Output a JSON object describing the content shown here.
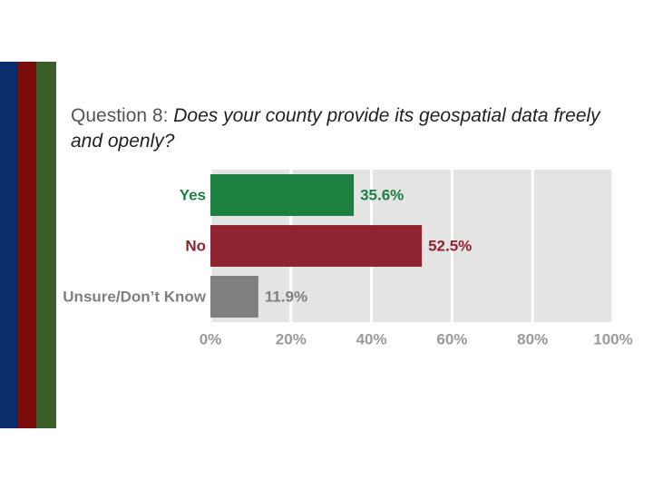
{
  "chart_data": {
    "type": "bar",
    "title": "Question 8:",
    "subtitle": "Does your county provide its geospatial data freely and openly?",
    "categories": [
      "Yes",
      "No",
      "Unsure/Don’t Know"
    ],
    "values": [
      35.6,
      52.5,
      11.9
    ],
    "value_labels": [
      "35.6%",
      "52.5%",
      "11.9%"
    ],
    "colors": [
      "#1b8040",
      "#8e2430",
      "#7f7f7f"
    ],
    "orientation": "horizontal",
    "xlim": [
      0,
      100
    ],
    "xticks": [
      {
        "value": 0,
        "label": "0%"
      },
      {
        "value": 20,
        "label": "20%"
      },
      {
        "value": 40,
        "label": "40%"
      },
      {
        "value": 60,
        "label": "60%"
      },
      {
        "value": 80,
        "label": "80%"
      },
      {
        "value": 100,
        "label": "100%"
      }
    ],
    "grid": true
  }
}
